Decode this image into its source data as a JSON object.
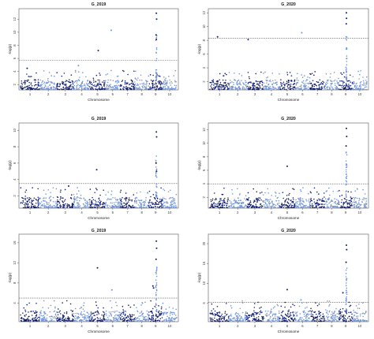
{
  "figure": {
    "colors": {
      "dark": "#0d1a6e",
      "light": "#6f93d6",
      "box": "#555555",
      "threshold": "#555555"
    }
  },
  "chart_data": [
    {
      "type": "scatter",
      "title": "G_2019",
      "xlabel": "Chromosome",
      "ylabel": "-log(p)",
      "yticks": [
        2,
        4,
        6,
        8,
        10,
        12
      ],
      "ylim": [
        1.2,
        13.6
      ],
      "xticks": [
        "1",
        "2",
        "3",
        "4",
        "5",
        "6",
        "7",
        "8",
        "9",
        "10"
      ],
      "threshold": 5.7,
      "grid": false,
      "highlights": [
        {
          "chr": 1,
          "pos": 0.35,
          "y": 4.5
        },
        {
          "chr": 4,
          "pos": 0.3,
          "y": 4.9
        },
        {
          "chr": 5,
          "pos": 0.55,
          "y": 7.2
        },
        {
          "chr": 6,
          "pos": 0.4,
          "y": 10.3
        },
        {
          "chr": 9,
          "pos": 0.55,
          "y": 8.9
        },
        {
          "chr": 9,
          "pos": 0.55,
          "y": 12.9
        },
        {
          "chr": 9,
          "pos": 0.57,
          "y": 12.0
        },
        {
          "chr": 9,
          "pos": 0.53,
          "y": 9.6
        }
      ]
    },
    {
      "type": "scatter",
      "title": "G_2020",
      "xlabel": "Chromosome",
      "ylabel": "-log(p)",
      "yticks": [
        2,
        4,
        6,
        8,
        10,
        12
      ],
      "ylim": [
        0.8,
        12.6
      ],
      "xticks": [
        "1",
        "2",
        "3",
        "4",
        "5",
        "6",
        "7",
        "8",
        "9",
        "10"
      ],
      "threshold": 8.3,
      "grid": false,
      "highlights": [
        {
          "chr": 1,
          "pos": 0.4,
          "y": 8.5
        },
        {
          "chr": 3,
          "pos": 0.1,
          "y": 8.1
        },
        {
          "chr": 6,
          "pos": 0.45,
          "y": 9.1
        },
        {
          "chr": 9,
          "pos": 0.55,
          "y": 12.0
        },
        {
          "chr": 9,
          "pos": 0.56,
          "y": 11.2
        },
        {
          "chr": 9,
          "pos": 0.54,
          "y": 10.4
        }
      ]
    },
    {
      "type": "scatter",
      "title": "G_2019",
      "xlabel": "Chromosome",
      "ylabel": "-log(p)",
      "yticks": [
        2,
        4,
        6,
        8,
        10
      ],
      "ylim": [
        0.5,
        10.9
      ],
      "xticks": [
        "1",
        "2",
        "3",
        "4",
        "5",
        "6",
        "7",
        "8",
        "9",
        "10"
      ],
      "threshold": 3.5,
      "grid": false,
      "highlights": [
        {
          "chr": 5,
          "pos": 0.45,
          "y": 5.2
        },
        {
          "chr": 9,
          "pos": 0.55,
          "y": 9.8
        },
        {
          "chr": 9,
          "pos": 0.57,
          "y": 9.2
        },
        {
          "chr": 9,
          "pos": 0.53,
          "y": 6.0
        },
        {
          "chr": 9,
          "pos": 0.56,
          "y": 5.0
        },
        {
          "chr": 3,
          "pos": 0.7,
          "y": 3.2
        }
      ]
    },
    {
      "type": "scatter",
      "title": "G_2020",
      "xlabel": "Chromosome",
      "ylabel": "-log(p)",
      "yticks": [
        2,
        4,
        6,
        8,
        10,
        12
      ],
      "ylim": [
        0.4,
        13.0
      ],
      "xticks": [
        "1",
        "2",
        "3",
        "4",
        "5",
        "6",
        "7",
        "8",
        "9",
        "10"
      ],
      "threshold": 4.0,
      "grid": false,
      "highlights": [
        {
          "chr": 5,
          "pos": 0.5,
          "y": 6.6
        },
        {
          "chr": 9,
          "pos": 0.55,
          "y": 12.2
        },
        {
          "chr": 9,
          "pos": 0.57,
          "y": 11.0
        },
        {
          "chr": 9,
          "pos": 0.53,
          "y": 9.6
        }
      ]
    },
    {
      "type": "scatter",
      "title": "G_2019",
      "xlabel": "Chromosome",
      "ylabel": "-log(p)",
      "yticks": [
        4,
        8,
        12,
        16
      ],
      "ylim": [
        0.3,
        17.7
      ],
      "xticks": [
        "1",
        "2",
        "3",
        "4",
        "5",
        "6",
        "7",
        "8",
        "9",
        "10"
      ],
      "threshold": 5.0,
      "grid": false,
      "highlights": [
        {
          "chr": 5,
          "pos": 0.5,
          "y": 11.0
        },
        {
          "chr": 6,
          "pos": 0.45,
          "y": 6.6
        },
        {
          "chr": 9,
          "pos": 0.55,
          "y": 16.3
        },
        {
          "chr": 9,
          "pos": 0.57,
          "y": 14.9
        },
        {
          "chr": 9,
          "pos": 0.53,
          "y": 12.7
        },
        {
          "chr": 9,
          "pos": 0.3,
          "y": 7.4
        },
        {
          "chr": 9,
          "pos": 0.35,
          "y": 7.0
        }
      ]
    },
    {
      "type": "scatter",
      "title": "G_2020",
      "xlabel": "Chromosome",
      "ylabel": "-log(p)",
      "yticks": [
        5,
        10,
        15,
        20
      ],
      "ylim": [
        0.3,
        22.4
      ],
      "xticks": [
        "1",
        "2",
        "3",
        "4",
        "5",
        "6",
        "7",
        "8",
        "9",
        "10"
      ],
      "threshold": 5.2,
      "grid": false,
      "highlights": [
        {
          "chr": 5,
          "pos": 0.5,
          "y": 8.4
        },
        {
          "chr": 6,
          "pos": 0.4,
          "y": 5.8
        },
        {
          "chr": 9,
          "pos": 0.55,
          "y": 19.6
        },
        {
          "chr": 9,
          "pos": 0.57,
          "y": 18.5
        },
        {
          "chr": 9,
          "pos": 0.53,
          "y": 15.3
        },
        {
          "chr": 9,
          "pos": 0.3,
          "y": 7.6
        }
      ]
    }
  ]
}
